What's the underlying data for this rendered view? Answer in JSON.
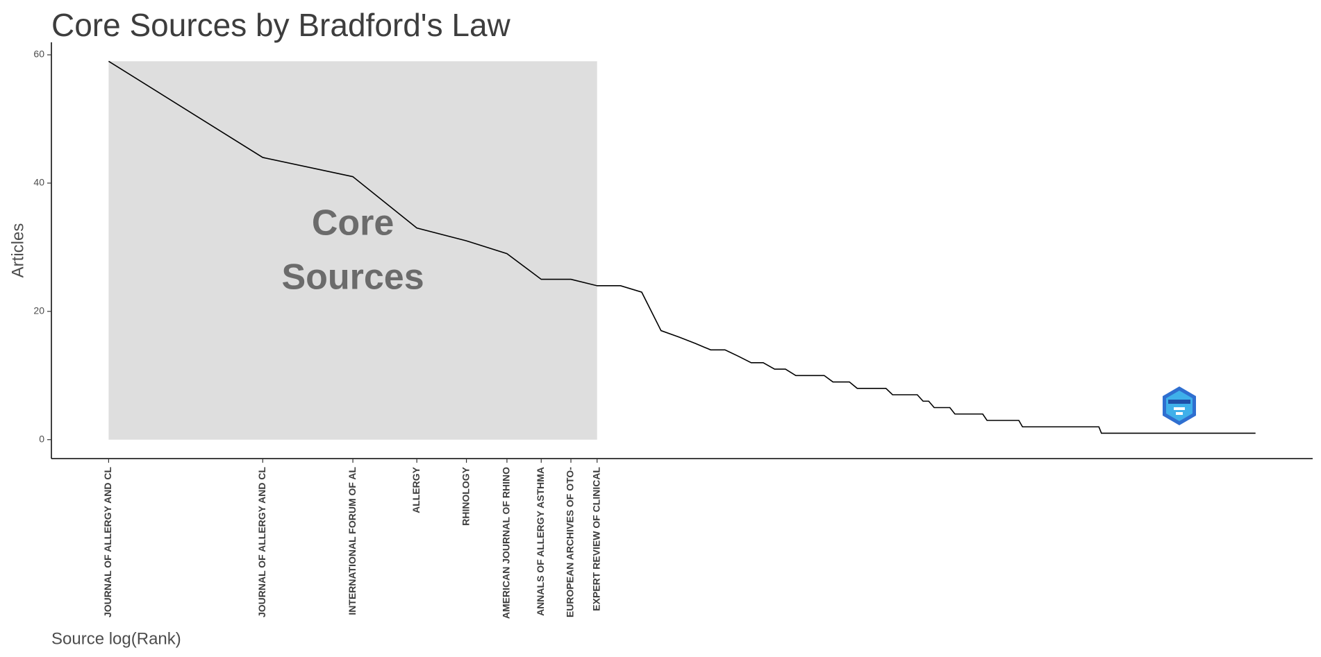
{
  "chart_data": {
    "type": "line",
    "title": "Core Sources by Bradford's Law",
    "x_label": "Source log(Rank)",
    "y_label": "Articles",
    "annotation_lines": [
      "Core",
      "Sources"
    ],
    "x": [
      1,
      2,
      3,
      4,
      5,
      6,
      7,
      8,
      9,
      10,
      11,
      12,
      13,
      14,
      15,
      16,
      17,
      18,
      19,
      20,
      21,
      22,
      25,
      26,
      28,
      29,
      33,
      34,
      38,
      39,
      40,
      41,
      44,
      45,
      51,
      52,
      60,
      61,
      86,
      87,
      174
    ],
    "values": [
      59,
      44,
      41,
      33,
      31,
      29,
      25,
      25,
      24,
      24,
      23,
      17,
      16,
      15,
      14,
      14,
      13,
      12,
      12,
      11,
      11,
      10,
      10,
      9,
      9,
      8,
      8,
      7,
      7,
      6,
      6,
      5,
      5,
      4,
      4,
      3,
      3,
      2,
      2,
      1,
      1
    ],
    "color": "#000000",
    "core_color": "#dedede",
    "xlog": true,
    "xlim": [
      0.773,
      225
    ],
    "ylim": [
      -2.95,
      61.95
    ],
    "yticks": [
      0,
      20,
      40,
      60
    ],
    "xticks": [
      {
        "value": 1,
        "label": "JOURNAL OF ALLERGY AND CL"
      },
      {
        "value": 2,
        "label": "JOURNAL OF ALLERGY AND CL"
      },
      {
        "value": 3,
        "label": "INTERNATIONAL FORUM OF AL"
      },
      {
        "value": 4,
        "label": "ALLERGY"
      },
      {
        "value": 5,
        "label": "RHINOLOGY"
      },
      {
        "value": 6,
        "label": "AMERICAN JOURNAL OF RHINO"
      },
      {
        "value": 7,
        "label": "ANNALS OF ALLERGY ASTHMA"
      },
      {
        "value": 8,
        "label": "EUROPEAN ARCHIVES OF OTO-"
      },
      {
        "value": 9,
        "label": "EXPERT REVIEW OF CLINICAL"
      }
    ],
    "grid": false
  }
}
